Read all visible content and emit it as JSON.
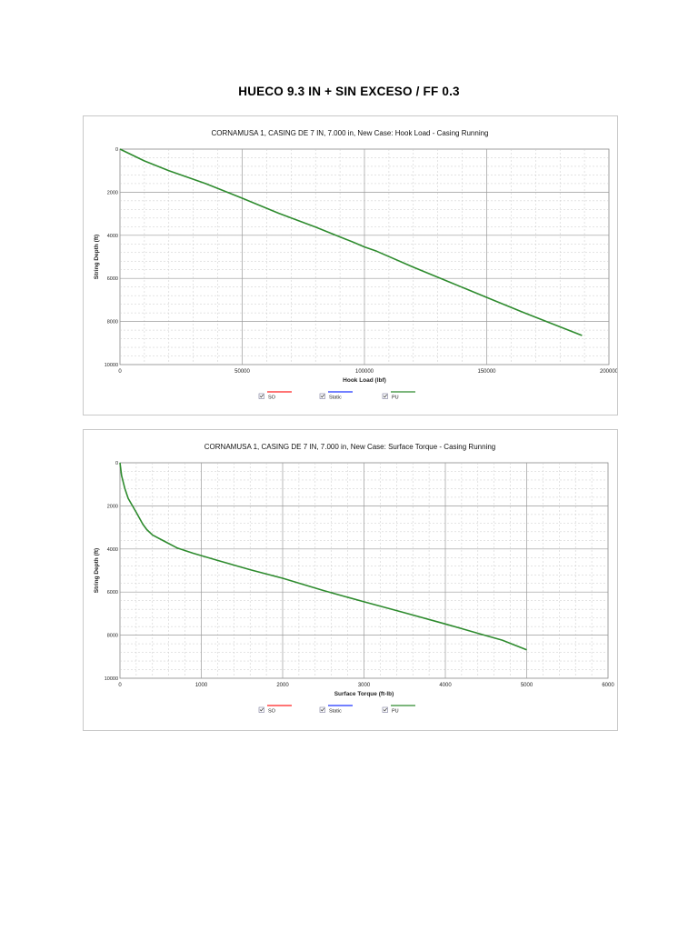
{
  "document": {
    "title": "HUECO 9.3 IN + SIN EXCESO / FF 0.3"
  },
  "chart_data": [
    {
      "type": "line",
      "title": "CORNAMUSA 1, CASING DE 7 IN, 7.000 in, New Case: Hook Load - Casing Running",
      "xlabel": "Hook Load (lbf)",
      "ylabel": "String Depth (ft)",
      "xlim": [
        0,
        200000
      ],
      "ylim": [
        0,
        10000
      ],
      "y_inverted": true,
      "grid": true,
      "legend_placement": "bottom-center",
      "x_ticks": [
        "0",
        "50000",
        "100000",
        "150000",
        "200000"
      ],
      "y_ticks": [
        "0",
        "2000",
        "4000",
        "6000",
        "8000",
        "10000"
      ],
      "series": [
        {
          "name": "SO",
          "color": "#ff2020",
          "x": [],
          "y": []
        },
        {
          "name": "Static",
          "color": "#1f35ff",
          "x": [],
          "y": []
        },
        {
          "name": "PU",
          "color": "#2e8b2e",
          "x": [
            0,
            10000,
            20000,
            35000,
            50000,
            65000,
            80000,
            95000,
            100000,
            105000,
            120000,
            135000,
            150000,
            165000,
            180000,
            189000
          ],
          "y": [
            0,
            550,
            1000,
            1600,
            2280,
            2980,
            3620,
            4300,
            4540,
            4740,
            5480,
            6180,
            6880,
            7580,
            8250,
            8650
          ]
        }
      ]
    },
    {
      "type": "line",
      "title": "CORNAMUSA 1, CASING DE 7 IN, 7.000 in, New Case: Surface Torque - Casing Running",
      "xlabel": "Surface Torque (ft-lb)",
      "ylabel": "String Depth (ft)",
      "xlim": [
        0,
        6000
      ],
      "ylim": [
        0,
        10000
      ],
      "y_inverted": true,
      "grid": true,
      "legend_placement": "bottom-center",
      "x_ticks": [
        "0",
        "1000",
        "2000",
        "3000",
        "4000",
        "5000",
        "6000"
      ],
      "y_ticks": [
        "0",
        "2000",
        "4000",
        "6000",
        "8000",
        "10000"
      ],
      "series": [
        {
          "name": "SO",
          "color": "#ff2020",
          "x": [],
          "y": []
        },
        {
          "name": "Static",
          "color": "#1f35ff",
          "x": [],
          "y": []
        },
        {
          "name": "PU",
          "color": "#2e8b2e",
          "x": [
            0,
            20,
            60,
            100,
            200,
            280,
            330,
            400,
            550,
            700,
            900,
            1200,
            1600,
            2000,
            2500,
            3000,
            3500,
            4000,
            4500,
            4700,
            5000
          ],
          "y": [
            0,
            600,
            1200,
            1650,
            2300,
            2850,
            3100,
            3350,
            3650,
            3950,
            4200,
            4530,
            4960,
            5360,
            5930,
            6450,
            6960,
            7480,
            8020,
            8230,
            8680
          ]
        }
      ]
    }
  ]
}
